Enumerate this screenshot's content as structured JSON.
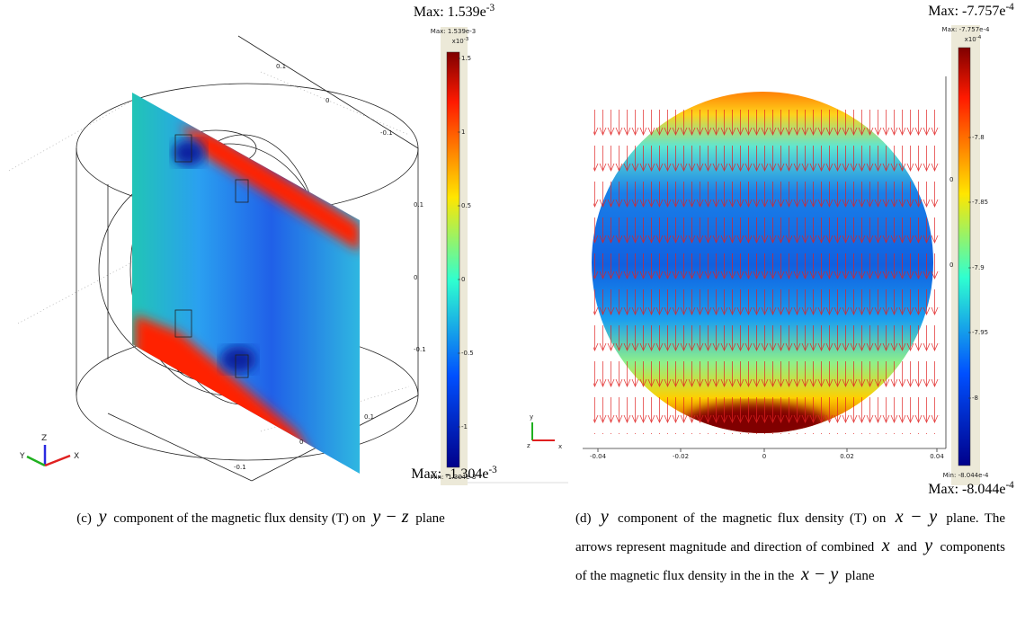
{
  "panels": [
    {
      "max_label": {
        "text": "Max: 1.539e",
        "exp": "-3"
      },
      "min_label": {
        "text": "Max: -1.304e",
        "exp": "-3"
      },
      "colorbar": {
        "max": "Max: 1.539e-3",
        "multiplier": "x10",
        "multiplier_exp": "-3",
        "ticks": [
          "1.5",
          "1",
          "0.5",
          "0",
          "-0.5",
          "-1"
        ],
        "min": "Min: -1.304e-3"
      },
      "axis_labels": [
        "0.1",
        "0",
        "-0.1",
        "0.1",
        "0",
        "-0.1",
        "0.1",
        "0",
        "-0.1"
      ],
      "triad": [
        "Y",
        "Z",
        "X"
      ],
      "caption": {
        "label": "(c)",
        "parts": [
          {
            "text": "y",
            "math": true
          },
          {
            "text": "component of the magnetic flux density (T) on",
            "math": false
          },
          {
            "text": "y − z",
            "math": true
          },
          {
            "text": "plane",
            "math": false
          }
        ]
      }
    },
    {
      "max_label": {
        "text": "Max: -7.757e",
        "exp": "-4"
      },
      "min_label": {
        "text": "Max: -8.044e",
        "exp": "-4"
      },
      "colorbar": {
        "max": "Max: -7.757e-4",
        "multiplier": "x10",
        "multiplier_exp": "-4",
        "ticks": [
          "-7.8",
          "-7.85",
          "-7.9",
          "-7.95",
          "-8"
        ],
        "min": "Min: -8.044e-4"
      },
      "axis_labels": [
        "-0.04",
        "-0.02",
        "0",
        "0.02",
        "0.04",
        "0",
        "0"
      ],
      "triad": [
        "y",
        "z",
        "x"
      ],
      "caption": {
        "label": "(d)",
        "parts": [
          {
            "text": "y",
            "math": true
          },
          {
            "text": "component of the magnetic flux density (T) on",
            "math": false
          },
          {
            "text": "x − y",
            "math": true
          },
          {
            "text": "plane. The arrows represent magnitude and direction of combined",
            "math": false
          },
          {
            "text": "x",
            "math": true
          },
          {
            "text": "and",
            "math": false
          },
          {
            "text": "y",
            "math": true
          },
          {
            "text": "components of the magnetic flux density in the in the",
            "math": false
          },
          {
            "text": "x − y",
            "math": true
          },
          {
            "text": "plane",
            "math": false
          }
        ]
      }
    }
  ]
}
